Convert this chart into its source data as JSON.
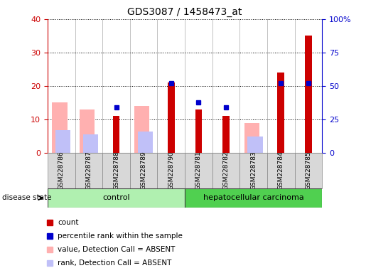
{
  "title": "GDS3087 / 1458473_at",
  "samples": [
    "GSM228786",
    "GSM228787",
    "GSM228788",
    "GSM228789",
    "GSM228790",
    "GSM228781",
    "GSM228782",
    "GSM228783",
    "GSM228784",
    "GSM228785"
  ],
  "count": [
    null,
    null,
    11,
    null,
    21,
    13,
    11,
    null,
    24,
    35
  ],
  "percentile_rank": [
    null,
    null,
    34,
    null,
    52,
    38,
    34,
    null,
    52,
    52
  ],
  "value_absent": [
    15,
    13,
    null,
    14,
    null,
    null,
    null,
    9,
    null,
    null
  ],
  "rank_absent": [
    17,
    14,
    null,
    16,
    null,
    null,
    null,
    12,
    null,
    null
  ],
  "ylim_left": [
    0,
    40
  ],
  "ylim_right": [
    0,
    100
  ],
  "yticks_left": [
    0,
    10,
    20,
    30,
    40
  ],
  "yticks_right": [
    0,
    25,
    50,
    75,
    100
  ],
  "yticklabels_right": [
    "0",
    "25",
    "50",
    "75",
    "100%"
  ],
  "count_color": "#cc0000",
  "percentile_color": "#0000cc",
  "value_absent_color": "#ffb0b0",
  "rank_absent_color": "#c0c0f8",
  "control_color": "#b0f0b0",
  "carcinoma_color": "#50d050",
  "bg_color": "#ffffff",
  "xtick_bg": "#d8d8d8",
  "n_control": 5,
  "n_total": 10
}
